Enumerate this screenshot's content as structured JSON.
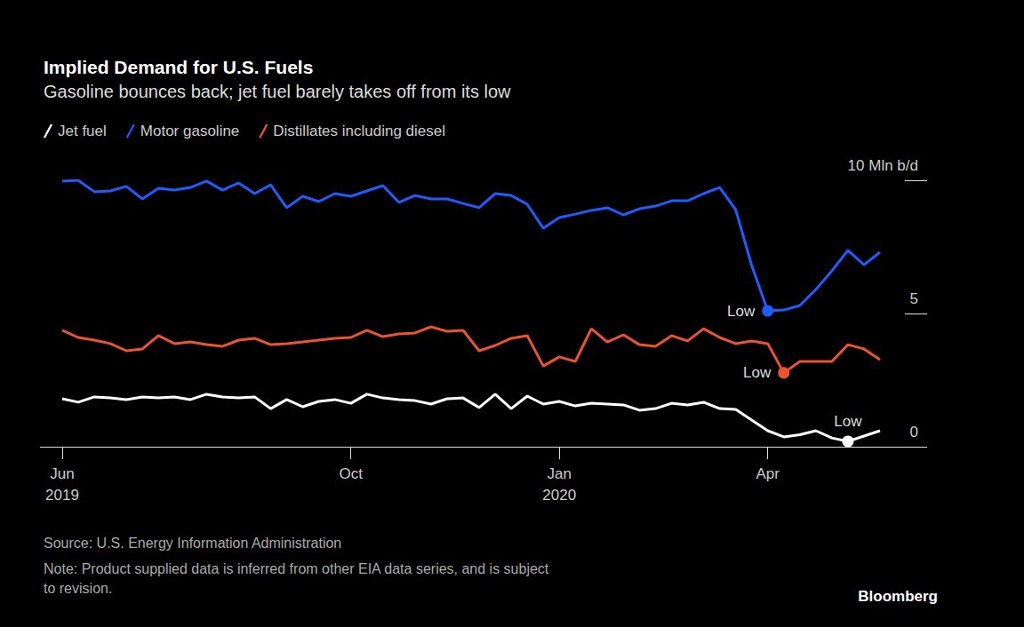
{
  "chart_data": {
    "type": "line",
    "title": "Implied Demand for U.S. Fuels",
    "subtitle": "Gasoline bounces back; jet fuel barely takes off from its low",
    "categories": [
      "Jun\n2019",
      null,
      null,
      null,
      null,
      null,
      null,
      null,
      null,
      null,
      null,
      null,
      null,
      null,
      null,
      null,
      null,
      null,
      "Oct",
      null,
      null,
      null,
      null,
      null,
      null,
      null,
      null,
      null,
      null,
      null,
      null,
      "Jan\n2020",
      null,
      null,
      null,
      null,
      null,
      null,
      null,
      null,
      null,
      null,
      null,
      null,
      "Apr",
      null,
      null,
      null,
      null,
      null,
      null,
      null
    ],
    "series": [
      {
        "name": "Jet fuel",
        "color": "#ffffff",
        "annotation": "Low",
        "values": [
          1.8,
          1.67,
          1.87,
          1.83,
          1.77,
          1.87,
          1.83,
          1.87,
          1.77,
          1.97,
          1.87,
          1.83,
          1.87,
          1.43,
          1.77,
          1.5,
          1.7,
          1.77,
          1.63,
          1.97,
          1.83,
          1.77,
          1.73,
          1.6,
          1.8,
          1.83,
          1.47,
          1.97,
          1.43,
          1.9,
          1.6,
          1.7,
          1.53,
          1.63,
          1.6,
          1.57,
          1.37,
          1.43,
          1.63,
          1.57,
          1.67,
          1.43,
          1.4,
          1.0,
          0.6,
          0.37,
          0.45,
          0.6,
          0.33,
          0.2,
          0.4,
          0.6
        ]
      },
      {
        "name": "Motor gasoline",
        "color": "#1f5cff",
        "annotation": "Low",
        "values": [
          9.97,
          10.0,
          9.57,
          9.6,
          9.77,
          9.3,
          9.7,
          9.63,
          9.73,
          9.97,
          9.63,
          9.9,
          9.5,
          9.83,
          8.97,
          9.4,
          9.2,
          9.5,
          9.4,
          9.6,
          9.8,
          9.17,
          9.43,
          9.3,
          9.3,
          9.13,
          8.97,
          9.5,
          9.43,
          9.1,
          8.2,
          8.6,
          8.73,
          8.87,
          8.97,
          8.7,
          8.93,
          9.03,
          9.23,
          9.23,
          9.5,
          9.73,
          8.9,
          6.8,
          5.1,
          5.13,
          5.3,
          5.9,
          6.6,
          7.37,
          6.83,
          7.3
        ]
      },
      {
        "name": "Distillates including diesel",
        "color": "#ec5330",
        "annotation": "Low",
        "values": [
          4.37,
          4.1,
          4.0,
          3.87,
          3.6,
          3.67,
          4.17,
          3.87,
          3.93,
          3.83,
          3.77,
          4.0,
          4.07,
          3.83,
          3.87,
          3.93,
          4.0,
          4.07,
          4.1,
          4.37,
          4.13,
          4.23,
          4.27,
          4.5,
          4.33,
          4.37,
          3.6,
          3.8,
          4.07,
          4.17,
          3.03,
          3.37,
          3.2,
          4.43,
          3.93,
          4.2,
          3.83,
          3.77,
          4.17,
          3.97,
          4.43,
          4.1,
          3.87,
          3.97,
          3.87,
          2.77,
          3.2,
          3.2,
          3.2,
          3.83,
          3.67,
          3.27
        ]
      }
    ],
    "ylim": [
      0,
      10
    ],
    "yticks": [
      0,
      5,
      {
        "value": 10,
        "label": "10 Mln b/d"
      }
    ],
    "grid": false,
    "legend": "top-left",
    "source": "Source: U.S. Energy Information Administration",
    "note": "Note: Product supplied data is inferred from other EIA data series, and is subject\nto revision.",
    "credit": "Bloomberg"
  }
}
